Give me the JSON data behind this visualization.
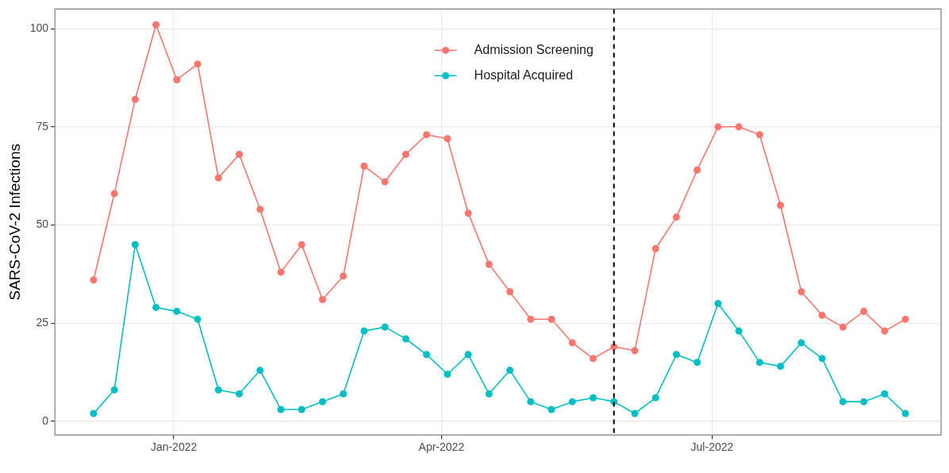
{
  "chart_data": {
    "type": "line",
    "ylabel": "SARS-CoV-2 Infections",
    "x": [
      "2021-12-05",
      "2021-12-12",
      "2021-12-19",
      "2021-12-26",
      "2022-01-02",
      "2022-01-09",
      "2022-01-16",
      "2022-01-23",
      "2022-01-30",
      "2022-02-06",
      "2022-02-13",
      "2022-02-20",
      "2022-02-27",
      "2022-03-06",
      "2022-03-13",
      "2022-03-20",
      "2022-03-27",
      "2022-04-03",
      "2022-04-10",
      "2022-04-17",
      "2022-04-24",
      "2022-05-01",
      "2022-05-08",
      "2022-05-15",
      "2022-05-22",
      "2022-05-29",
      "2022-06-05",
      "2022-06-12",
      "2022-06-19",
      "2022-06-26",
      "2022-07-03",
      "2022-07-10",
      "2022-07-17",
      "2022-07-24",
      "2022-07-31",
      "2022-08-07",
      "2022-08-14",
      "2022-08-21",
      "2022-08-28",
      "2022-09-04"
    ],
    "series": [
      {
        "name": "Admission Screening",
        "color": "#f8766d",
        "values": [
          36,
          58,
          82,
          101,
          87,
          91,
          62,
          68,
          54,
          38,
          45,
          31,
          37,
          65,
          61,
          68,
          73,
          72,
          53,
          40,
          33,
          26,
          26,
          20,
          16,
          19,
          18,
          44,
          52,
          64,
          75,
          75,
          73,
          55,
          33,
          27,
          24,
          28,
          23,
          26
        ]
      },
      {
        "name": "Hospital Acquired",
        "color": "#00bfc4",
        "values": [
          2,
          8,
          45,
          29,
          28,
          26,
          8,
          7,
          13,
          3,
          3,
          5,
          7,
          23,
          24,
          21,
          17,
          12,
          17,
          7,
          13,
          5,
          3,
          5,
          6,
          5,
          2,
          6,
          17,
          15,
          30,
          23,
          15,
          14,
          20,
          16,
          5,
          5,
          7,
          2
        ]
      }
    ],
    "xlim": [
      "2021-11-22",
      "2022-09-16"
    ],
    "xticks": [
      {
        "value": "2022-01-01",
        "label": "Jan-2022"
      },
      {
        "value": "2022-04-01",
        "label": "Apr-2022"
      },
      {
        "value": "2022-07-01",
        "label": "Jul-2022"
      }
    ],
    "ylim": [
      -3.5,
      105
    ],
    "yticks": [
      0,
      25,
      50,
      75,
      100
    ],
    "ref_lines": [
      {
        "axis": "x",
        "value": "2022-05-29",
        "color": "#000000",
        "line_style": "dashed"
      }
    ],
    "grid": true,
    "legend": "top",
    "marker": "circle",
    "line_style": "solid"
  }
}
